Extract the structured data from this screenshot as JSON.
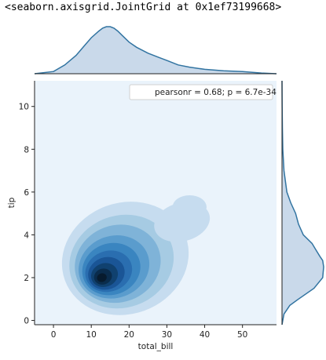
{
  "output_repr": "<seaborn.axisgrid.JointGrid at 0x1ef73199668>",
  "chart_data": {
    "type": "kde-joint",
    "xlabel": "total_bill",
    "ylabel": "tip",
    "xlim": [
      -5,
      59
    ],
    "ylim": [
      -0.2,
      11.2
    ],
    "x_ticks": [
      0,
      10,
      20,
      30,
      40,
      50
    ],
    "y_ticks": [
      0,
      2,
      4,
      6,
      8,
      10
    ],
    "annotation": "pearsonr = 0.68; p = 6.7e-34",
    "legend_position": "top-right",
    "colors": {
      "kde_line": "#3274a1",
      "kde_fill": "#c9d9ea",
      "joint_palette": [
        "#eaf3fb",
        "#c6dcef",
        "#a6cbe3",
        "#7fb3d8",
        "#5a9ccd",
        "#3a85c0",
        "#2a6eb0",
        "#1a5596",
        "#10416f",
        "#0a2c4c",
        "#071b2e"
      ]
    },
    "marginal_x": {
      "x": [
        -5,
        0,
        3,
        6,
        8,
        10,
        12,
        13,
        14,
        15,
        16,
        17,
        18,
        20,
        22,
        25,
        28,
        30,
        33,
        36,
        40,
        45,
        50,
        55,
        59
      ],
      "density": [
        0.0,
        0.003,
        0.012,
        0.025,
        0.037,
        0.049,
        0.058,
        0.062,
        0.064,
        0.064,
        0.062,
        0.058,
        0.053,
        0.043,
        0.036,
        0.028,
        0.022,
        0.018,
        0.012,
        0.009,
        0.006,
        0.004,
        0.003,
        0.001,
        0.0
      ]
    },
    "marginal_y": {
      "y": [
        -0.2,
        0.3,
        0.7,
        1.0,
        1.5,
        2.0,
        2.5,
        2.8,
        3.0,
        3.3,
        3.6,
        4.0,
        4.5,
        5.0,
        5.5,
        6.0,
        7.0,
        8.0,
        9.0,
        10.0,
        11.2
      ],
      "density": [
        0.0,
        0.02,
        0.08,
        0.17,
        0.33,
        0.42,
        0.43,
        0.42,
        0.39,
        0.35,
        0.31,
        0.22,
        0.17,
        0.14,
        0.09,
        0.05,
        0.02,
        0.008,
        0.004,
        0.002,
        0.0
      ]
    },
    "joint_levels": [
      {
        "level": 1,
        "cx": 19.0,
        "cy": 2.9,
        "rx": 17.0,
        "ry": 2.6
      },
      {
        "level": 2,
        "cx": 18.0,
        "cy": 2.75,
        "rx": 14.0,
        "ry": 2.15
      },
      {
        "level": 3,
        "cx": 17.0,
        "cy": 2.65,
        "rx": 11.5,
        "ry": 1.8
      },
      {
        "level": 4,
        "cx": 16.0,
        "cy": 2.5,
        "rx": 9.5,
        "ry": 1.45
      },
      {
        "level": 5,
        "cx": 15.3,
        "cy": 2.4,
        "rx": 7.8,
        "ry": 1.2
      },
      {
        "level": 6,
        "cx": 14.6,
        "cy": 2.3,
        "rx": 6.3,
        "ry": 0.95
      },
      {
        "level": 7,
        "cx": 14.0,
        "cy": 2.2,
        "rx": 4.9,
        "ry": 0.75
      },
      {
        "level": 8,
        "cx": 13.5,
        "cy": 2.12,
        "rx": 3.6,
        "ry": 0.55
      },
      {
        "level": 9,
        "cx": 13.1,
        "cy": 2.05,
        "rx": 2.4,
        "ry": 0.37
      },
      {
        "level": 10,
        "cx": 12.8,
        "cy": 2.0,
        "rx": 1.3,
        "ry": 0.2
      }
    ]
  }
}
